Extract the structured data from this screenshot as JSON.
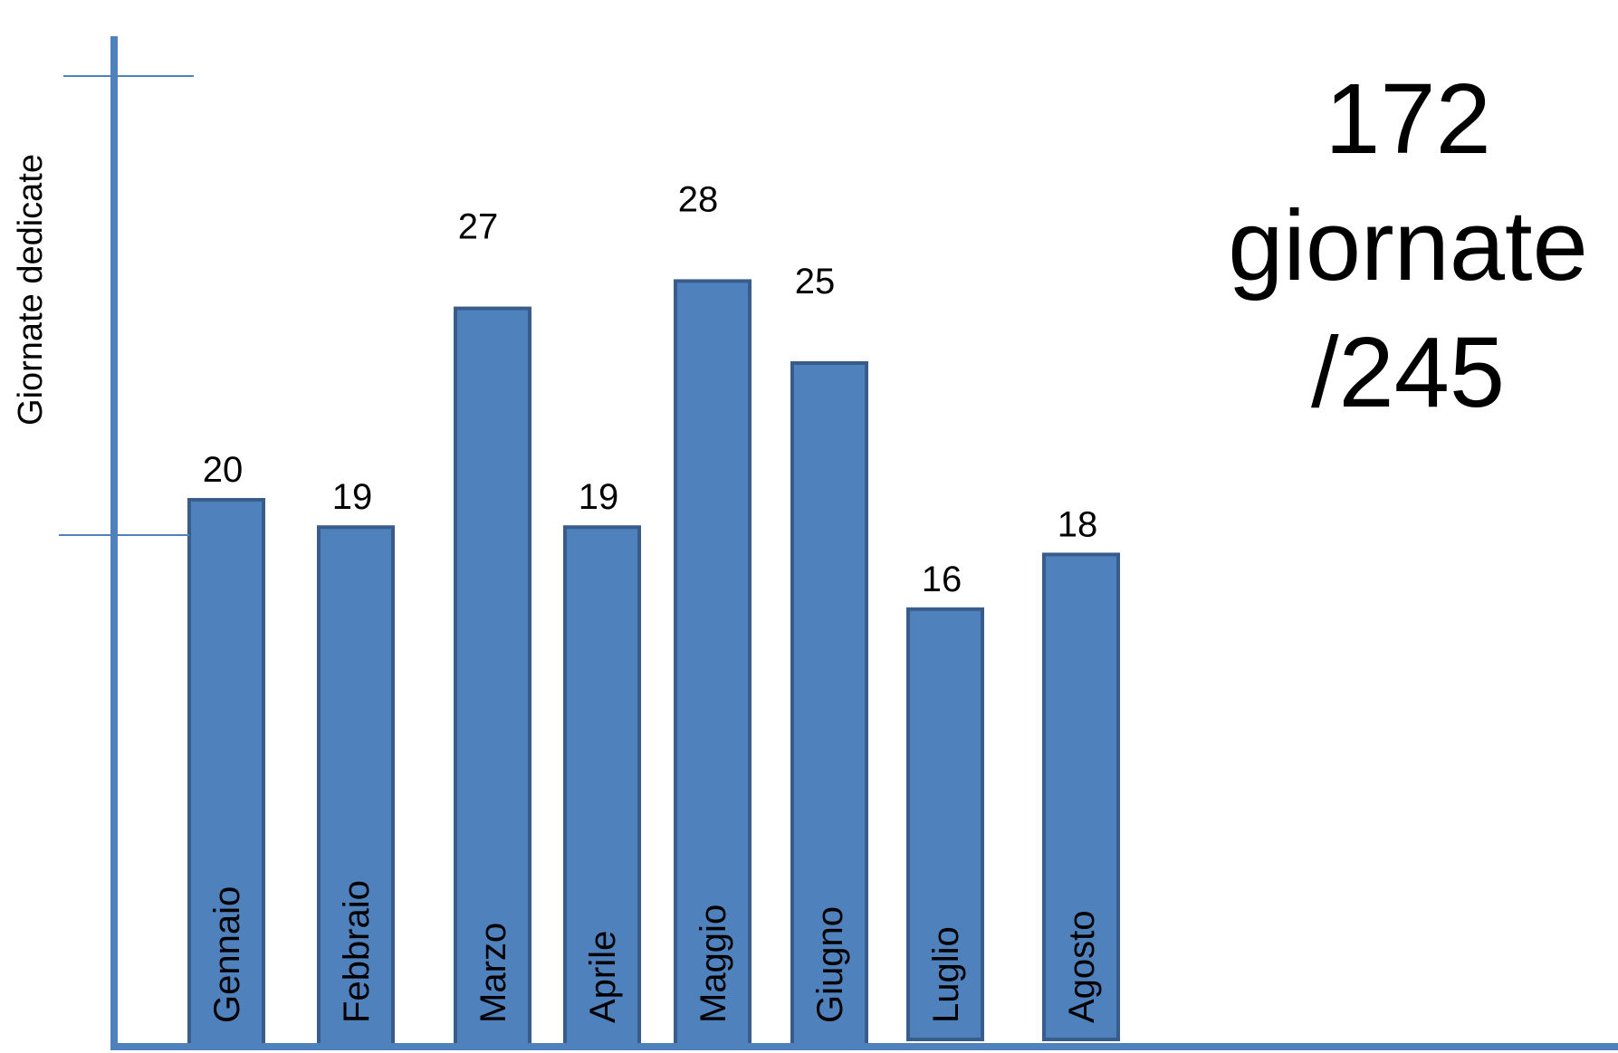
{
  "chart_data": {
    "type": "bar",
    "categories": [
      "Gennaio",
      "Febbraio",
      "Marzo",
      "Aprile",
      "Maggio",
      "Giugno",
      "Luglio",
      "Agosto"
    ],
    "values": [
      20,
      19,
      27,
      19,
      28,
      25,
      16,
      18
    ],
    "xlabel": "",
    "ylabel": "Giornate dedicate",
    "colors": {
      "bar_fill": "#4f81bd",
      "bar_stroke": "#385d8a",
      "axis": "#4f81bd"
    },
    "grid": false,
    "legend": "none"
  },
  "summary": {
    "line1": "172",
    "line2": "giornate",
    "line3": "/245"
  }
}
